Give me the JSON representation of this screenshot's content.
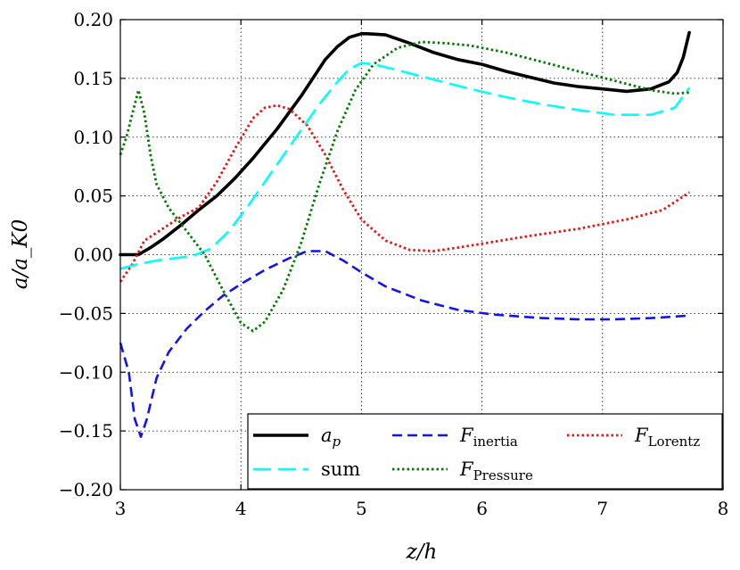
{
  "chart_data": {
    "type": "line",
    "title": "",
    "xlabel": "z/h",
    "ylabel": "a/a_K0",
    "xlim": [
      3,
      8
    ],
    "ylim": [
      -0.2,
      0.2
    ],
    "xticks": [
      3,
      4,
      5,
      6,
      7,
      8
    ],
    "xtick_labels": [
      "3",
      "4",
      "5",
      "6",
      "7",
      "8"
    ],
    "yticks": [
      -0.2,
      -0.15,
      -0.1,
      -0.05,
      0.0,
      0.05,
      0.1,
      0.15,
      0.2
    ],
    "ytick_labels": [
      "−0.20",
      "−0.15",
      "−0.10",
      "−0.05",
      "0.00",
      "0.05",
      "0.10",
      "0.15",
      "0.20"
    ],
    "grid": true,
    "legend_position": "lower-right",
    "series": [
      {
        "name": "a_p",
        "legend_main": "a",
        "legend_sub": "p",
        "color": "#000000",
        "style": "solid",
        "x": [
          3.0,
          3.15,
          3.25,
          3.35,
          3.5,
          3.65,
          3.8,
          3.95,
          4.1,
          4.3,
          4.5,
          4.7,
          4.8,
          4.9,
          5.0,
          5.05,
          5.2,
          5.4,
          5.6,
          5.8,
          6.0,
          6.2,
          6.4,
          6.6,
          6.8,
          7.0,
          7.2,
          7.4,
          7.55,
          7.62,
          7.67,
          7.72
        ],
        "y": [
          0.0,
          0.0,
          0.006,
          0.013,
          0.025,
          0.038,
          0.05,
          0.065,
          0.082,
          0.107,
          0.135,
          0.166,
          0.177,
          0.185,
          0.188,
          0.188,
          0.187,
          0.18,
          0.172,
          0.166,
          0.162,
          0.156,
          0.151,
          0.146,
          0.143,
          0.141,
          0.139,
          0.141,
          0.147,
          0.155,
          0.168,
          0.189
        ]
      },
      {
        "name": "F_inertia",
        "legend_main": "F",
        "legend_sub": "inertia",
        "color": "#1414e6",
        "style": "dashed",
        "x": [
          3.0,
          3.07,
          3.12,
          3.17,
          3.22,
          3.3,
          3.4,
          3.55,
          3.7,
          3.85,
          4.0,
          4.2,
          4.4,
          4.55,
          4.7,
          4.85,
          5.0,
          5.2,
          5.5,
          5.8,
          6.1,
          6.5,
          6.8,
          7.1,
          7.4,
          7.7
        ],
        "y": [
          -0.075,
          -0.1,
          -0.14,
          -0.155,
          -0.14,
          -0.105,
          -0.083,
          -0.063,
          -0.048,
          -0.035,
          -0.025,
          -0.013,
          -0.003,
          0.003,
          0.003,
          -0.005,
          -0.015,
          -0.027,
          -0.039,
          -0.047,
          -0.051,
          -0.054,
          -0.055,
          -0.055,
          -0.054,
          -0.052
        ]
      },
      {
        "name": "F_Lorentz",
        "legend_main": "F",
        "legend_sub": "Lorentz",
        "color": "#e61414",
        "style": "dotted",
        "x": [
          3.0,
          3.1,
          3.2,
          3.35,
          3.5,
          3.65,
          3.8,
          3.95,
          4.1,
          4.2,
          4.3,
          4.4,
          4.55,
          4.7,
          4.85,
          5.0,
          5.2,
          5.4,
          5.6,
          5.8,
          6.1,
          6.4,
          6.8,
          7.2,
          7.5,
          7.72
        ],
        "y": [
          -0.023,
          -0.008,
          0.012,
          0.022,
          0.032,
          0.04,
          0.062,
          0.09,
          0.116,
          0.125,
          0.127,
          0.124,
          0.11,
          0.085,
          0.055,
          0.03,
          0.012,
          0.004,
          0.003,
          0.006,
          0.011,
          0.016,
          0.022,
          0.03,
          0.038,
          0.053
        ]
      },
      {
        "name": "sum",
        "legend_main": "sum",
        "legend_sub": "",
        "color": "#00ffff",
        "style": "longdash",
        "x": [
          3.0,
          3.15,
          3.3,
          3.45,
          3.6,
          3.75,
          3.9,
          4.05,
          4.2,
          4.35,
          4.5,
          4.65,
          4.8,
          4.9,
          5.0,
          5.1,
          5.3,
          5.6,
          5.9,
          6.2,
          6.5,
          6.8,
          7.1,
          7.4,
          7.6,
          7.72
        ],
        "y": [
          -0.012,
          -0.008,
          -0.005,
          -0.003,
          -0.001,
          0.005,
          0.02,
          0.04,
          0.062,
          0.084,
          0.106,
          0.128,
          0.147,
          0.158,
          0.163,
          0.162,
          0.157,
          0.149,
          0.141,
          0.134,
          0.128,
          0.123,
          0.119,
          0.119,
          0.125,
          0.142
        ]
      },
      {
        "name": "F_Pressure",
        "legend_main": "F",
        "legend_sub": "Pressure",
        "color": "#007a00",
        "style": "dotted",
        "x": [
          3.0,
          3.05,
          3.1,
          3.15,
          3.2,
          3.25,
          3.3,
          3.4,
          3.55,
          3.7,
          3.85,
          4.0,
          4.1,
          4.2,
          4.35,
          4.5,
          4.65,
          4.8,
          4.95,
          5.1,
          5.3,
          5.5,
          5.7,
          5.9,
          6.2,
          6.5,
          6.8,
          7.1,
          7.4,
          7.6,
          7.72
        ],
        "y": [
          0.085,
          0.1,
          0.12,
          0.14,
          0.12,
          0.085,
          0.06,
          0.04,
          0.02,
          0.0,
          -0.03,
          -0.058,
          -0.065,
          -0.057,
          -0.03,
          0.01,
          0.06,
          0.105,
          0.14,
          0.162,
          0.176,
          0.181,
          0.18,
          0.178,
          0.172,
          0.164,
          0.156,
          0.148,
          0.14,
          0.137,
          0.138
        ]
      }
    ]
  }
}
